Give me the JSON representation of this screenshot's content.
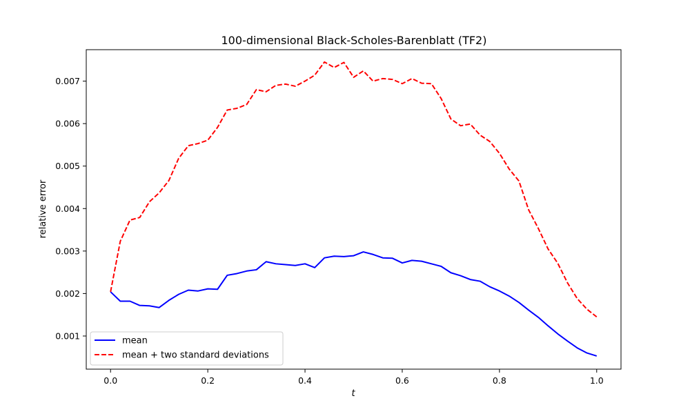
{
  "chart_data": {
    "type": "line",
    "title": "100-dimensional Black-Scholes-Barenblatt (TF2)",
    "xlabel": "t",
    "ylabel": "relative error",
    "xlim": [
      -0.05,
      1.05
    ],
    "ylim": [
      0.00022,
      0.00774
    ],
    "x_ticks": [
      0.0,
      0.2,
      0.4,
      0.6,
      0.8,
      1.0
    ],
    "x_tick_labels": [
      "0.0",
      "0.2",
      "0.4",
      "0.6",
      "0.8",
      "1.0"
    ],
    "y_ticks": [
      0.001,
      0.002,
      0.003,
      0.004,
      0.005,
      0.006,
      0.007
    ],
    "y_tick_labels": [
      "0.001",
      "0.002",
      "0.003",
      "0.004",
      "0.005",
      "0.006",
      "0.007"
    ],
    "grid": false,
    "legend_position": "lower-left",
    "x": [
      0.0,
      0.02,
      0.04,
      0.06,
      0.08,
      0.1,
      0.12,
      0.14,
      0.16,
      0.18,
      0.2,
      0.22,
      0.24,
      0.26,
      0.28,
      0.3,
      0.32,
      0.34,
      0.36,
      0.38,
      0.4,
      0.42,
      0.44,
      0.46,
      0.48,
      0.5,
      0.52,
      0.54,
      0.56,
      0.58,
      0.6,
      0.62,
      0.64,
      0.66,
      0.68,
      0.7,
      0.72,
      0.74,
      0.76,
      0.78,
      0.8,
      0.82,
      0.84,
      0.86,
      0.88,
      0.9,
      0.92,
      0.94,
      0.96,
      0.98,
      1.0
    ],
    "series": [
      {
        "name": "mean",
        "color": "#0000ff",
        "dash": "solid",
        "values": [
          0.00204,
          0.00182,
          0.00182,
          0.00172,
          0.00171,
          0.00167,
          0.00184,
          0.00198,
          0.00208,
          0.00206,
          0.00211,
          0.0021,
          0.00243,
          0.00247,
          0.00253,
          0.00256,
          0.00275,
          0.0027,
          0.00268,
          0.00266,
          0.0027,
          0.00261,
          0.00284,
          0.00288,
          0.00287,
          0.00289,
          0.00298,
          0.00292,
          0.00284,
          0.00283,
          0.00272,
          0.00278,
          0.00276,
          0.0027,
          0.00264,
          0.00249,
          0.00242,
          0.00233,
          0.00229,
          0.00216,
          0.00206,
          0.00194,
          0.00179,
          0.00161,
          0.00144,
          0.00124,
          0.00105,
          0.00088,
          0.00072,
          0.0006,
          0.00053
        ]
      },
      {
        "name": "mean + two standard deviations",
        "color": "#ff0000",
        "dash": "dashed",
        "values": [
          0.00204,
          0.00323,
          0.00373,
          0.00379,
          0.00416,
          0.00437,
          0.00466,
          0.00518,
          0.00548,
          0.00553,
          0.00561,
          0.00591,
          0.00632,
          0.00636,
          0.00645,
          0.0068,
          0.00675,
          0.0069,
          0.00693,
          0.00688,
          0.007,
          0.00714,
          0.00745,
          0.00732,
          0.00744,
          0.00709,
          0.00724,
          0.007,
          0.00706,
          0.00704,
          0.00694,
          0.00706,
          0.00695,
          0.00694,
          0.00659,
          0.00611,
          0.00595,
          0.00599,
          0.00573,
          0.00558,
          0.0053,
          0.00493,
          0.00465,
          0.00397,
          0.00353,
          0.00305,
          0.00271,
          0.00225,
          0.00188,
          0.00163,
          0.00145
        ]
      }
    ]
  }
}
